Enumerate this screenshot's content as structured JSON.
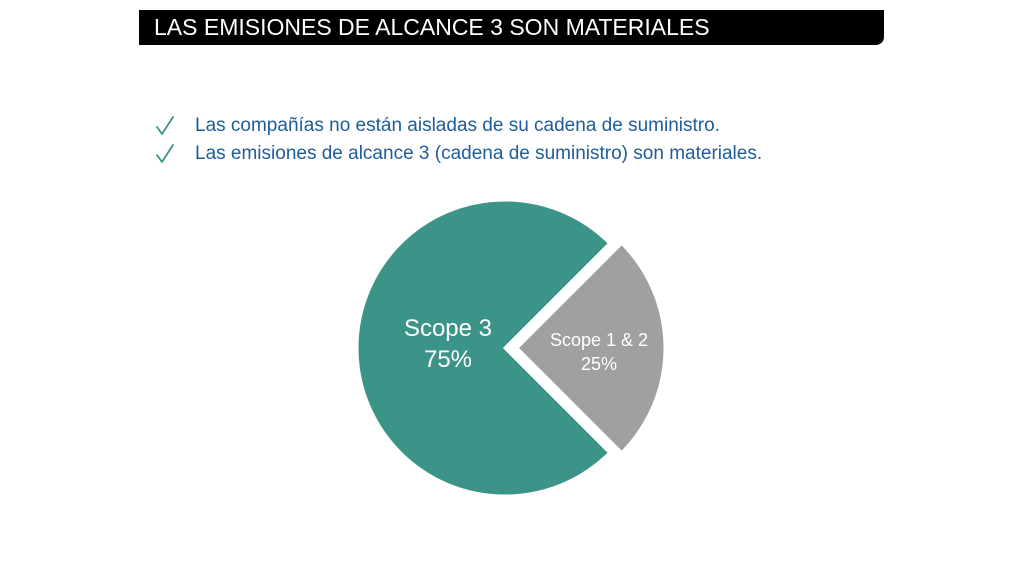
{
  "title": "LAS EMISIONES DE ALCANCE 3 SON MATERIALES",
  "bullets": [
    "Las compañías no están aisladas de su cadena de suministro.",
    "Las emisiones de alcance 3 (cadena de suministro) son materiales."
  ],
  "colors": {
    "title_bg": "#000000",
    "title_text": "#ffffff",
    "bullet_text": "#1f5c99",
    "check": "#3a948c",
    "scope3": "#3c9489",
    "scope12": "#a0a0a0"
  },
  "icons": {
    "bullet": "check-icon"
  },
  "chart_data": {
    "type": "pie",
    "title": "",
    "slices": [
      {
        "label": "Scope 3",
        "value_label": "75%",
        "value": 75,
        "color": "#3c9489",
        "exploded": false
      },
      {
        "label": "Scope 1 & 2",
        "value_label": "25%",
        "value": 25,
        "color": "#a0a0a0",
        "exploded": true
      }
    ],
    "legend": "none"
  }
}
